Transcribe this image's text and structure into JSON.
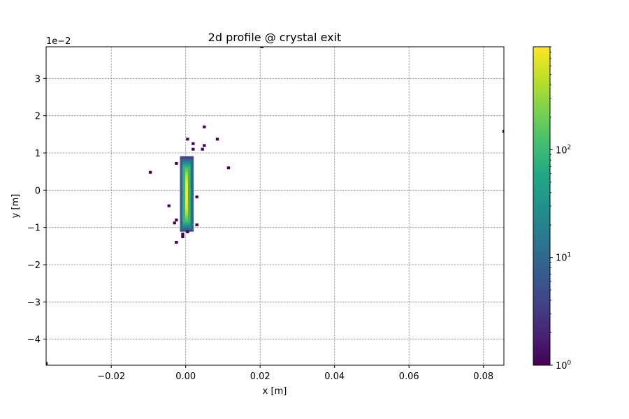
{
  "chart_data": {
    "type": "heatmap",
    "title": "2d profile @ crystal exit",
    "xlabel": "x [m]",
    "ylabel": "y [m]",
    "y_offset_label": "1e−2",
    "xlim": [
      -0.0375,
      0.0855
    ],
    "ylim": [
      -0.047,
      0.0385
    ],
    "grid": true,
    "x_ticks": [
      {
        "value": -0.02,
        "label": "−0.02"
      },
      {
        "value": 0.0,
        "label": "0.00"
      },
      {
        "value": 0.02,
        "label": "0.02"
      },
      {
        "value": 0.04,
        "label": "0.04"
      },
      {
        "value": 0.06,
        "label": "0.06"
      },
      {
        "value": 0.08,
        "label": "0.08"
      }
    ],
    "y_ticks": [
      {
        "value": 0.03,
        "label": "3"
      },
      {
        "value": 0.02,
        "label": "2"
      },
      {
        "value": 0.01,
        "label": "1"
      },
      {
        "value": 0.0,
        "label": "0"
      },
      {
        "value": -0.01,
        "label": "−1"
      },
      {
        "value": -0.02,
        "label": "−2"
      },
      {
        "value": -0.03,
        "label": "−3"
      },
      {
        "value": -0.04,
        "label": "−4"
      }
    ],
    "colorbar": {
      "scale": "log",
      "colormap": "viridis",
      "min": 1,
      "max": 900,
      "ticks": [
        {
          "value": 1,
          "base": "10",
          "exp": "0"
        },
        {
          "value": 10,
          "base": "10",
          "exp": "1"
        },
        {
          "value": 100,
          "base": "10",
          "exp": "2"
        }
      ]
    },
    "bins": {
      "bin_width_x": 0.0009,
      "bin_height_y": 0.001,
      "core": {
        "x_min": -0.0015,
        "x_max": 0.0021,
        "y_min": -0.011,
        "y_max": 0.009,
        "peak_count": 900,
        "edge_count": 3
      },
      "isolated": [
        [
          -0.0375,
          -0.0465,
          1
        ],
        [
          0.0855,
          0.0158,
          1
        ],
        [
          0.0205,
          0.0385,
          1
        ],
        [
          0.005,
          0.017,
          1
        ],
        [
          0.0085,
          0.0137,
          1
        ],
        [
          0.005,
          0.012,
          1
        ],
        [
          0.0045,
          0.011,
          1
        ],
        [
          0.002,
          0.0125,
          1
        ],
        [
          0.002,
          0.011,
          1
        ],
        [
          0.0005,
          0.0137,
          1
        ],
        [
          0.0115,
          0.006,
          1
        ],
        [
          -0.0095,
          0.0048,
          1
        ],
        [
          -0.0025,
          0.0072,
          1
        ],
        [
          -0.0045,
          -0.0042,
          1
        ],
        [
          0.003,
          -0.0018,
          1
        ],
        [
          -0.0025,
          -0.008,
          1
        ],
        [
          -0.003,
          -0.0088,
          1
        ],
        [
          0.003,
          -0.0093,
          1
        ],
        [
          -0.0025,
          -0.014,
          1
        ],
        [
          -0.0008,
          -0.0125,
          1
        ],
        [
          -0.0008,
          -0.0118,
          1
        ],
        [
          0.0005,
          -0.0112,
          1
        ]
      ]
    }
  }
}
